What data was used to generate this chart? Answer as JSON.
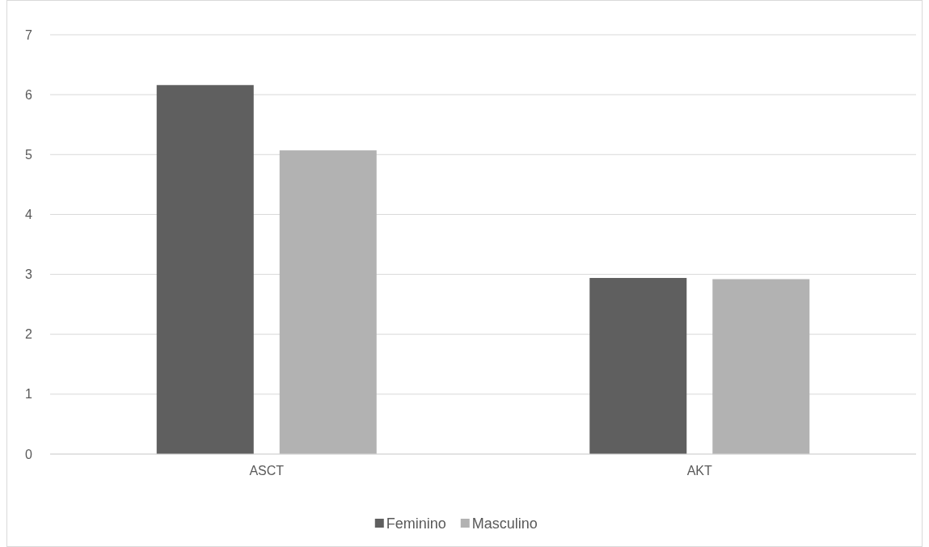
{
  "chart_data": {
    "type": "bar",
    "categories": [
      "ASCT",
      "AKT"
    ],
    "series": [
      {
        "name": "Feminino",
        "color": "#5f5f5f",
        "values": [
          6.16,
          2.94
        ]
      },
      {
        "name": "Masculino",
        "color": "#b2b2b2",
        "values": [
          5.07,
          2.92
        ]
      }
    ],
    "ylim": [
      0,
      7
    ],
    "yticks": [
      0,
      1,
      2,
      3,
      4,
      5,
      6,
      7
    ],
    "grid": "y",
    "legend": "bottom"
  }
}
